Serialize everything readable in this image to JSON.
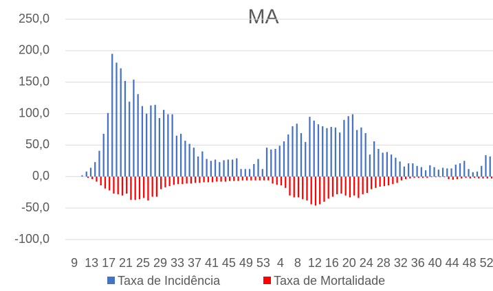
{
  "chart_data": {
    "type": "bar",
    "title": "MA",
    "categories": [
      "9",
      null,
      null,
      null,
      "13",
      null,
      null,
      null,
      "17",
      null,
      null,
      null,
      "21",
      null,
      null,
      null,
      "25",
      null,
      null,
      null,
      "29",
      null,
      null,
      null,
      "33",
      null,
      null,
      null,
      "37",
      null,
      null,
      null,
      "41",
      null,
      null,
      null,
      "45",
      null,
      null,
      null,
      "49",
      null,
      null,
      null,
      "53",
      null,
      null,
      null,
      "4",
      null,
      null,
      null,
      "8",
      null,
      null,
      null,
      "12",
      null,
      null,
      null,
      "16",
      null,
      null,
      null,
      "20",
      null,
      null,
      null,
      "24",
      null,
      null,
      null,
      "28",
      null,
      null,
      null,
      "32",
      null,
      null,
      null,
      "36",
      null,
      null,
      null,
      "40",
      null,
      null,
      null,
      "44",
      null,
      null,
      null,
      "48",
      null,
      null,
      null,
      "52",
      null
    ],
    "series": [
      {
        "name": "Taxa de Incidência",
        "color": "#4472c4",
        "values": [
          0,
          0,
          2,
          8,
          14,
          23,
          41,
          68,
          101,
          195,
          181,
          172,
          152,
          119,
          154,
          131,
          112,
          100,
          113,
          114,
          93,
          106,
          99,
          99,
          65,
          68,
          57,
          52,
          46,
          32,
          40,
          28,
          25,
          27,
          23,
          26,
          27,
          27,
          29,
          12,
          12,
          12,
          20,
          28,
          12,
          46,
          43,
          44,
          49,
          56,
          67,
          80,
          84,
          69,
          55,
          95,
          89,
          83,
          80,
          77,
          79,
          78,
          70,
          90,
          96,
          99,
          74,
          78,
          69,
          35,
          56,
          44,
          38,
          39,
          35,
          30,
          24,
          16,
          21,
          21,
          17,
          15,
          10,
          18,
          15,
          11,
          14,
          13,
          13,
          19,
          21,
          25,
          12,
          7,
          8,
          17,
          34,
          32
        ]
      },
      {
        "name": "Taxa de Mortalidade",
        "color": "#ff0000",
        "values": [
          0,
          0,
          0,
          -2,
          -4,
          -8,
          -14,
          -19,
          -22,
          -27,
          -28,
          -30,
          -27,
          -37,
          -37,
          -36,
          -34,
          -38,
          -32,
          -32,
          -20,
          -17,
          -15,
          -13,
          -12,
          -12,
          -11,
          -11,
          -10,
          -10,
          -9,
          -9,
          -9,
          -8,
          -8,
          -8,
          -7,
          -7,
          -7,
          -6,
          -6,
          -6,
          -6,
          -6,
          -6,
          -6,
          -11,
          -13,
          -14,
          -18,
          -30,
          -33,
          -33,
          -36,
          -38,
          -44,
          -46,
          -44,
          -40,
          -35,
          -32,
          -28,
          -27,
          -30,
          -33,
          -30,
          -34,
          -28,
          -26,
          -20,
          -18,
          -16,
          -15,
          -14,
          -12,
          -10,
          -6,
          -4,
          -3,
          -2,
          -2,
          -2,
          -2,
          -1,
          -1,
          -1,
          -1,
          -4,
          -5,
          -4,
          -3,
          -2,
          -3,
          -2,
          -3,
          -3,
          -3,
          -3
        ]
      }
    ],
    "ylim": [
      -100,
      250
    ],
    "yticks": [
      {
        "value": -100,
        "label": "-100,0"
      },
      {
        "value": -50,
        "label": "-50,0"
      },
      {
        "value": 0,
        "label": "0,0"
      },
      {
        "value": 50,
        "label": "50,0"
      },
      {
        "value": 100,
        "label": "100,0"
      },
      {
        "value": 150,
        "label": "150,0"
      },
      {
        "value": 200,
        "label": "200,0"
      },
      {
        "value": 250,
        "label": "250,0"
      }
    ],
    "grid": true,
    "legend": "bottom"
  }
}
